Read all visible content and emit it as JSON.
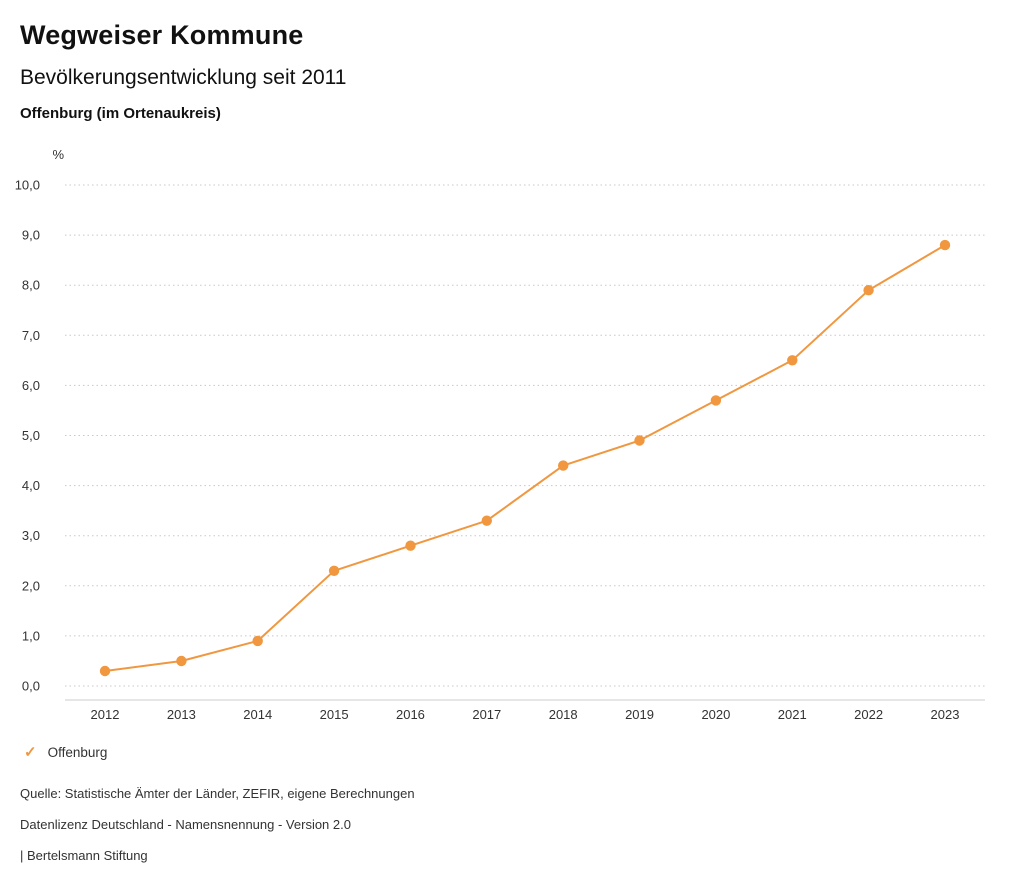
{
  "header": {
    "title": "Wegweiser Kommune",
    "subtitle": "Bevölkerungsentwicklung seit 2011",
    "region": "Offenburg (im Ortenaukreis)"
  },
  "chart_data": {
    "type": "line",
    "title": "Bevölkerungsentwicklung seit 2011",
    "x": [
      2012,
      2013,
      2014,
      2015,
      2016,
      2017,
      2018,
      2019,
      2020,
      2021,
      2022,
      2023
    ],
    "series": [
      {
        "name": "Offenburg",
        "values": [
          0.3,
          0.5,
          0.9,
          2.3,
          2.8,
          3.3,
          4.4,
          4.9,
          5.7,
          6.5,
          7.9,
          8.8
        ],
        "color": "#f0973f"
      }
    ],
    "xlabel": "",
    "ylabel": "%",
    "ylim": [
      0,
      10
    ],
    "ytick_step": 1,
    "grid": "horizontal-dotted",
    "grid_color": "#c8c8c8",
    "axis_line_color": "#cccccc",
    "legend_position": "bottom-left",
    "decimal_separator": ","
  },
  "legend": {
    "items": [
      {
        "label": "Offenburg",
        "marker": "check-icon",
        "color": "#f0973f"
      }
    ]
  },
  "footer": {
    "source": "Quelle: Statistische Ämter der Länder, ZEFIR, eigene Berechnungen",
    "license": "Datenlizenz Deutschland - Namensnennung - Version 2.0",
    "attribution": "| Bertelsmann Stiftung"
  }
}
